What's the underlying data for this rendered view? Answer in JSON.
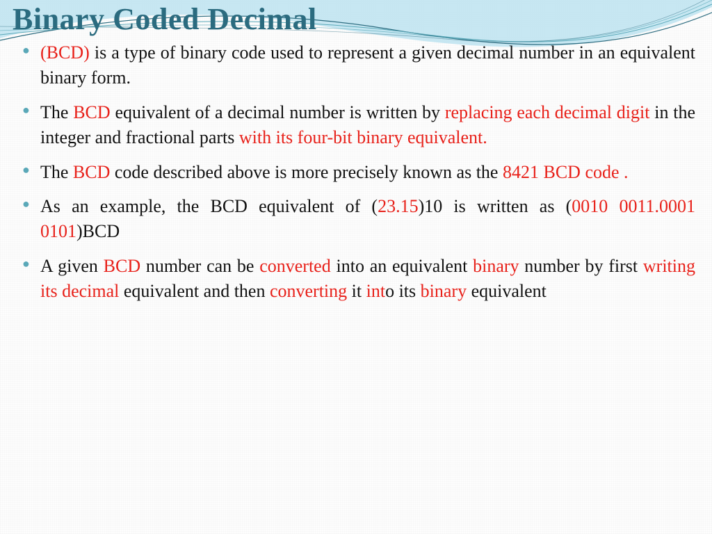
{
  "colors": {
    "title": "#2b6b7f",
    "bullet": "#5aa8b8",
    "highlight": "#e8211a",
    "body": "#111111",
    "wave_fill": "#bde3f0",
    "wave_line1": "#2b6b7f",
    "wave_line2": "#5aa8b8"
  },
  "title": "Binary Coded Decimal",
  "bullets": [
    {
      "runs": [
        {
          "t": "(BCD)",
          "hl": true
        },
        {
          "t": " is a type of binary code used to represent a given decimal number in an equivalent binary form.",
          "hl": false
        }
      ]
    },
    {
      "runs": [
        {
          "t": "The ",
          "hl": false
        },
        {
          "t": "BCD",
          "hl": true
        },
        {
          "t": " equivalent of a decimal number is written by ",
          "hl": false
        },
        {
          "t": "replacing each decimal digit",
          "hl": true
        },
        {
          "t": " in the integer and fractional parts ",
          "hl": false
        },
        {
          "t": "with its four-bit binary equivalent.",
          "hl": true
        }
      ]
    },
    {
      "runs": [
        {
          "t": "The ",
          "hl": false
        },
        {
          "t": "BCD",
          "hl": true
        },
        {
          "t": " code described above is more precisely known as the ",
          "hl": false
        },
        {
          "t": "8421 BCD code .",
          "hl": true
        }
      ]
    },
    {
      "runs": [
        {
          "t": "As an example, the BCD equivalent of (",
          "hl": false
        },
        {
          "t": "23.15",
          "hl": true
        },
        {
          "t": ")10 is written as (",
          "hl": false
        },
        {
          "t": "0010 0011.0001 0101",
          "hl": true
        },
        {
          "t": ")BCD",
          "hl": false
        }
      ]
    },
    {
      "runs": [
        {
          "t": "A given ",
          "hl": false
        },
        {
          "t": "BCD",
          "hl": true
        },
        {
          "t": " number can be ",
          "hl": false
        },
        {
          "t": "converted",
          "hl": true
        },
        {
          "t": " into an equivalent ",
          "hl": false
        },
        {
          "t": "binary",
          "hl": true
        },
        {
          "t": " number by first ",
          "hl": false
        },
        {
          "t": "writing its decimal",
          "hl": true
        },
        {
          "t": " equivalent and then ",
          "hl": false
        },
        {
          "t": "converting",
          "hl": true
        },
        {
          "t": " it ",
          "hl": false
        },
        {
          "t": "int",
          "hl": true
        },
        {
          "t": "o its ",
          "hl": false
        },
        {
          "t": "binary",
          "hl": true
        },
        {
          "t": " equivalent",
          "hl": false
        }
      ]
    }
  ]
}
